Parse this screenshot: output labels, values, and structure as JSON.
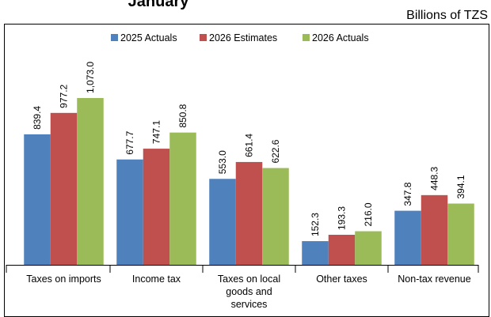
{
  "chart_data": {
    "type": "bar",
    "title": "January",
    "subtitle": "Billions of TZS",
    "categories": [
      "Taxes on imports",
      "Income tax",
      "Taxes on local goods and services",
      "Other taxes",
      "Non-tax revenue"
    ],
    "series": [
      {
        "name": "2025 Actuals",
        "color": "#4f81bd",
        "values": [
          839.4,
          677.7,
          553.0,
          152.3,
          347.8
        ],
        "value_labels": [
          "839.4",
          "677.7",
          "553.0",
          "152.3",
          "347.8"
        ]
      },
      {
        "name": "2026 Estimates",
        "color": "#c0504d",
        "values": [
          977.2,
          747.1,
          661.4,
          193.3,
          448.3
        ],
        "value_labels": [
          "977.2",
          "747.1",
          "661.4",
          "193.3",
          "448.3"
        ]
      },
      {
        "name": "2026 Actuals",
        "color": "#9bbb59",
        "values": [
          1073.0,
          850.8,
          622.6,
          216.0,
          394.1
        ],
        "value_labels": [
          "1,073.0",
          "850.8",
          "622.6",
          "216.0",
          "394.1"
        ]
      }
    ],
    "ylim": [
      0,
      1200
    ],
    "legend": "top"
  }
}
